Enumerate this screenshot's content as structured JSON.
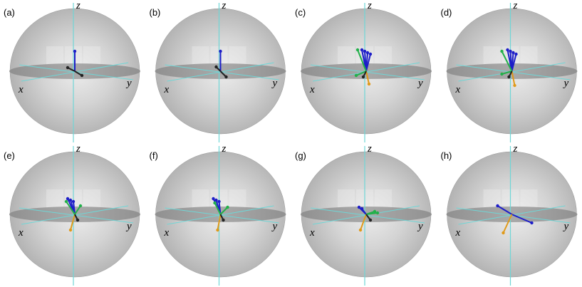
{
  "panels": [
    {
      "label": "(a)",
      "z": "z",
      "x": "x",
      "y": "y"
    },
    {
      "label": "(b)",
      "z": "z",
      "x": "x",
      "y": "y"
    },
    {
      "label": "(c)",
      "z": "z",
      "x": "x",
      "y": "y"
    },
    {
      "label": "(d)",
      "z": "z",
      "x": "x",
      "y": "y"
    },
    {
      "label": "(e)",
      "z": "z",
      "x": "x",
      "y": "y"
    },
    {
      "label": "(f)",
      "z": "z",
      "x": "x",
      "y": "y"
    },
    {
      "label": "(g)",
      "z": "z",
      "x": "x",
      "y": "y"
    },
    {
      "label": "(h)",
      "z": "z",
      "x": "x",
      "y": "y"
    }
  ]
}
